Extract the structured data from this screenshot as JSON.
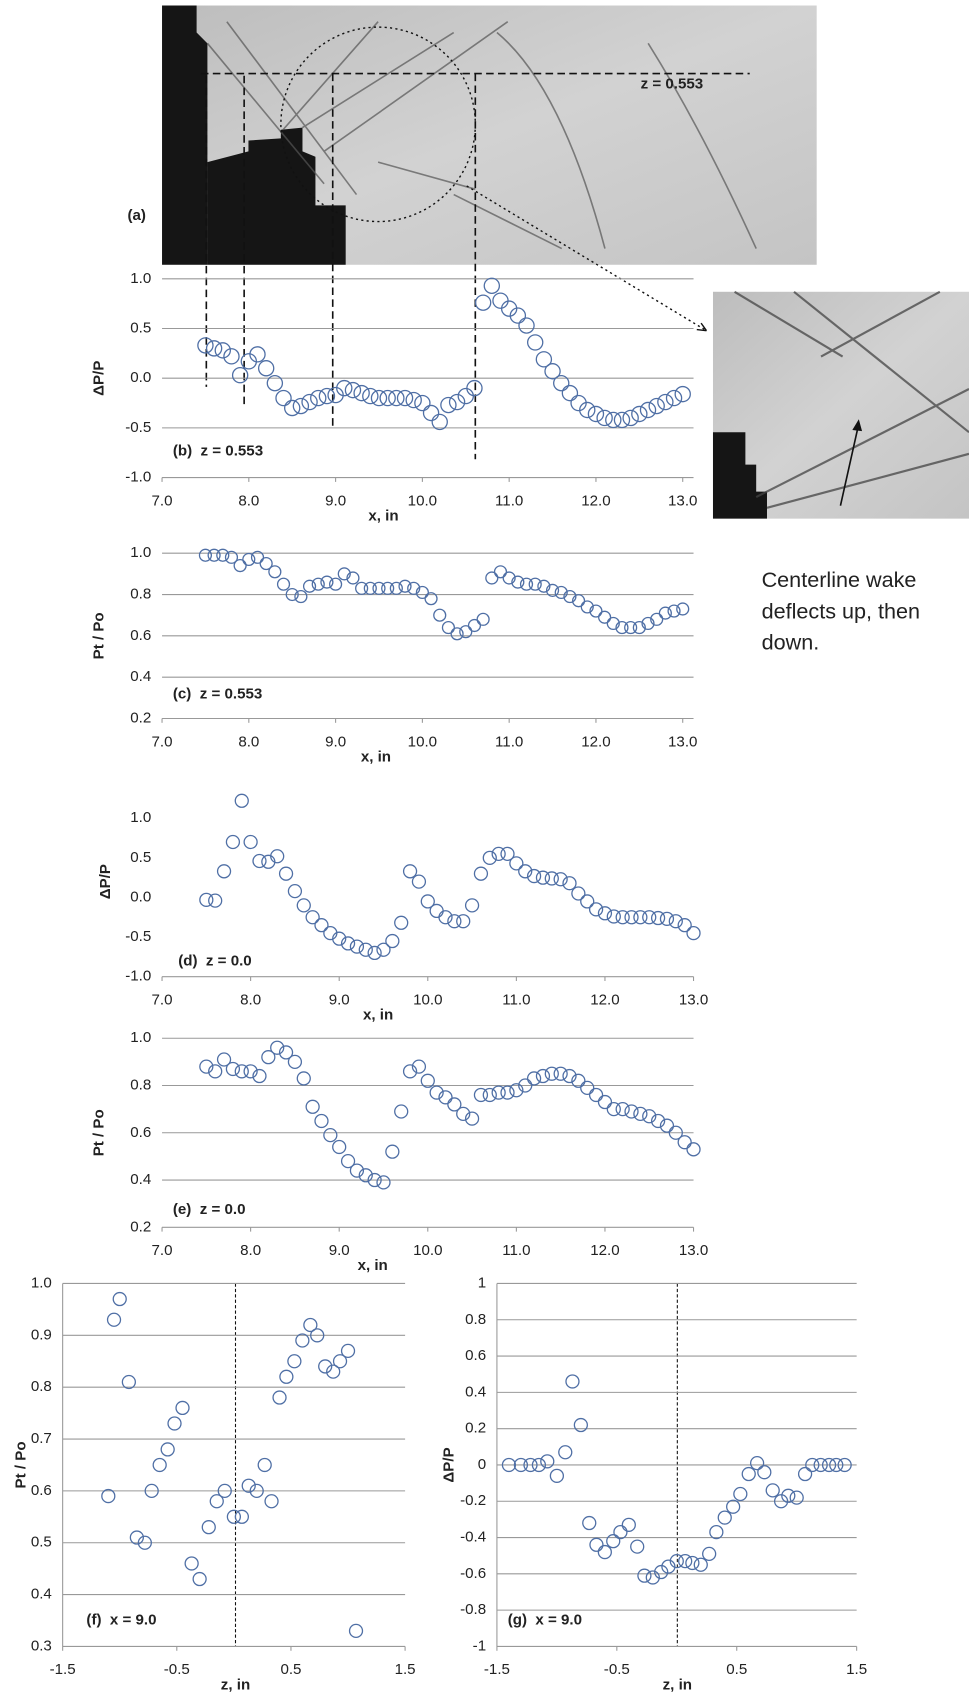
{
  "image_panel": {
    "label": "(a)",
    "annotation": "z = 0.553"
  },
  "callout": [
    "Centerline wake",
    "deflects up, then",
    "down."
  ],
  "chart_data": [
    {
      "type": "scatter",
      "panel_label": "(b)  z = 0.553",
      "x_label": "x, in",
      "y_label": "ΔP/P",
      "color": "#4f6fa5",
      "grid": true,
      "x": [
        7.5,
        7.6,
        7.7,
        7.8,
        7.9,
        8.0,
        8.1,
        8.2,
        8.3,
        8.4,
        8.5,
        8.6,
        8.7,
        8.8,
        8.9,
        9.0,
        9.1,
        9.2,
        9.3,
        9.4,
        9.5,
        9.6,
        9.7,
        9.8,
        9.9,
        10.0,
        10.1,
        10.2,
        10.3,
        10.4,
        10.5,
        10.6,
        10.7,
        10.8,
        10.9,
        11.0,
        11.1,
        11.2,
        11.3,
        11.4,
        11.5,
        11.6,
        11.7,
        11.8,
        11.9,
        12.0,
        12.1,
        12.2,
        12.3,
        12.4,
        12.5,
        12.6,
        12.7,
        12.8,
        12.9,
        13.0
      ],
      "values": [
        0.33,
        0.3,
        0.28,
        0.22,
        0.03,
        0.17,
        0.24,
        0.1,
        -0.05,
        -0.2,
        -0.3,
        -0.28,
        -0.24,
        -0.2,
        -0.18,
        -0.17,
        -0.1,
        -0.12,
        -0.15,
        -0.18,
        -0.2,
        -0.2,
        -0.2,
        -0.2,
        -0.22,
        -0.25,
        -0.35,
        -0.44,
        -0.27,
        -0.24,
        -0.18,
        -0.1,
        0.76,
        0.93,
        0.78,
        0.7,
        0.63,
        0.53,
        0.36,
        0.19,
        0.07,
        -0.05,
        -0.15,
        -0.25,
        -0.32,
        -0.36,
        -0.4,
        -0.42,
        -0.42,
        -0.4,
        -0.36,
        -0.32,
        -0.28,
        -0.24,
        -0.2,
        -0.16
      ],
      "xlim": [
        7.0,
        13.0
      ],
      "ylim": [
        -1.0,
        1.0
      ],
      "xticks": [
        {
          "value": 7,
          "label": "7.0"
        },
        {
          "value": 8,
          "label": "8.0"
        },
        {
          "value": 9,
          "label": "9.0"
        },
        {
          "value": 10,
          "label": "10.0"
        },
        {
          "value": 11,
          "label": "11.0"
        },
        {
          "value": 12,
          "label": "12.0"
        },
        {
          "value": 13,
          "label": "13.0"
        }
      ],
      "yticks": [
        {
          "value": -1,
          "label": "-1.0"
        },
        {
          "value": -0.5,
          "label": "-0.5"
        },
        {
          "value": 0,
          "label": "0.0"
        },
        0.5,
        {
          "value": 1,
          "label": "1.0"
        }
      ]
    },
    {
      "type": "scatter",
      "panel_label": "(c)  z = 0.553",
      "x_label": "x, in",
      "y_label": "Pt / Po",
      "color": "#4f6fa5",
      "grid": true,
      "x": [
        7.5,
        7.6,
        7.7,
        7.8,
        7.9,
        8.0,
        8.1,
        8.2,
        8.3,
        8.4,
        8.5,
        8.6,
        8.7,
        8.8,
        8.9,
        9.0,
        9.1,
        9.2,
        9.3,
        9.4,
        9.5,
        9.6,
        9.7,
        9.8,
        9.9,
        10.0,
        10.1,
        10.2,
        10.3,
        10.4,
        10.5,
        10.6,
        10.7,
        10.8,
        10.9,
        11.0,
        11.1,
        11.2,
        11.3,
        11.4,
        11.5,
        11.6,
        11.7,
        11.8,
        11.9,
        12.0,
        12.1,
        12.2,
        12.3,
        12.4,
        12.5,
        12.6,
        12.7,
        12.8,
        12.9,
        13.0
      ],
      "values": [
        0.99,
        0.99,
        0.99,
        0.98,
        0.94,
        0.97,
        0.98,
        0.95,
        0.91,
        0.85,
        0.8,
        0.79,
        0.84,
        0.85,
        0.86,
        0.85,
        0.9,
        0.88,
        0.83,
        0.83,
        0.83,
        0.83,
        0.83,
        0.84,
        0.83,
        0.81,
        0.78,
        0.7,
        0.64,
        0.61,
        0.62,
        0.65,
        0.68,
        0.88,
        0.91,
        0.88,
        0.86,
        0.85,
        0.85,
        0.84,
        0.82,
        0.81,
        0.79,
        0.77,
        0.74,
        0.72,
        0.69,
        0.66,
        0.64,
        0.64,
        0.64,
        0.66,
        0.68,
        0.71,
        0.72,
        0.73
      ],
      "xlim": [
        7.0,
        13.0
      ],
      "ylim": [
        0.2,
        1.0
      ],
      "xticks": [
        {
          "value": 7,
          "label": "7.0"
        },
        {
          "value": 8,
          "label": "8.0"
        },
        {
          "value": 9,
          "label": "9.0"
        },
        {
          "value": 10,
          "label": "10.0"
        },
        {
          "value": 11,
          "label": "11.0"
        },
        {
          "value": 12,
          "label": "12.0"
        },
        {
          "value": 13,
          "label": "13.0"
        }
      ],
      "yticks": [
        0.2,
        0.4,
        0.6,
        0.8,
        {
          "value": 1,
          "label": "1.0"
        }
      ]
    },
    {
      "type": "scatter",
      "panel_label": "(d)  z = 0.0",
      "x_label": "x, in",
      "y_label": "ΔP/P",
      "color": "#4f6fa5",
      "grid": false,
      "x": [
        7.5,
        7.6,
        7.7,
        7.8,
        7.9,
        8.0,
        8.1,
        8.2,
        8.3,
        8.4,
        8.5,
        8.6,
        8.7,
        8.8,
        8.9,
        9.0,
        9.1,
        9.2,
        9.3,
        9.4,
        9.5,
        9.6,
        9.7,
        9.8,
        9.9,
        10.0,
        10.1,
        10.2,
        10.3,
        10.4,
        10.5,
        10.6,
        10.7,
        10.8,
        10.9,
        11.0,
        11.1,
        11.2,
        11.3,
        11.4,
        11.5,
        11.6,
        11.7,
        11.8,
        11.9,
        12.0,
        12.1,
        12.2,
        12.3,
        12.4,
        12.5,
        12.6,
        12.7,
        12.8,
        12.9,
        13.0
      ],
      "values": [
        -0.03,
        -0.04,
        0.33,
        0.7,
        1.22,
        0.7,
        0.46,
        0.45,
        0.52,
        0.3,
        0.08,
        -0.1,
        -0.25,
        -0.35,
        -0.45,
        -0.52,
        -0.58,
        -0.62,
        -0.66,
        -0.7,
        -0.66,
        -0.55,
        -0.32,
        0.33,
        0.2,
        -0.05,
        -0.17,
        -0.25,
        -0.3,
        -0.3,
        -0.1,
        0.3,
        0.5,
        0.55,
        0.55,
        0.43,
        0.33,
        0.27,
        0.25,
        0.24,
        0.23,
        0.18,
        0.05,
        -0.05,
        -0.15,
        -0.2,
        -0.24,
        -0.25,
        -0.25,
        -0.25,
        -0.25,
        -0.26,
        -0.27,
        -0.3,
        -0.35,
        -0.45
      ],
      "xlim": [
        7.0,
        13.0
      ],
      "ylim": [
        -1.0,
        1.4
      ],
      "xticks": [
        {
          "value": 7,
          "label": "7.0"
        },
        {
          "value": 8,
          "label": "8.0"
        },
        {
          "value": 9,
          "label": "9.0"
        },
        {
          "value": 10,
          "label": "10.0"
        },
        {
          "value": 11,
          "label": "11.0"
        },
        {
          "value": 12,
          "label": "12.0"
        },
        {
          "value": 13,
          "label": "13.0"
        }
      ],
      "yticks": [
        {
          "value": -1,
          "label": "-1.0"
        },
        {
          "value": -0.5,
          "label": "-0.5"
        },
        {
          "value": 0,
          "label": "0.0"
        },
        0.5,
        {
          "value": 1,
          "label": "1.0"
        }
      ]
    },
    {
      "type": "scatter",
      "panel_label": "(e)  z = 0.0",
      "x_label": "x, in",
      "y_label": "Pt / Po",
      "color": "#4f6fa5",
      "grid": true,
      "x": [
        7.5,
        7.6,
        7.7,
        7.8,
        7.9,
        8.0,
        8.1,
        8.2,
        8.3,
        8.4,
        8.5,
        8.6,
        8.7,
        8.8,
        8.9,
        9.0,
        9.1,
        9.2,
        9.3,
        9.4,
        9.5,
        9.6,
        9.7,
        9.8,
        9.9,
        10.0,
        10.1,
        10.2,
        10.3,
        10.4,
        10.5,
        10.6,
        10.7,
        10.8,
        10.9,
        11.0,
        11.1,
        11.2,
        11.3,
        11.4,
        11.5,
        11.6,
        11.7,
        11.8,
        11.9,
        12.0,
        12.1,
        12.2,
        12.3,
        12.4,
        12.5,
        12.6,
        12.7,
        12.8,
        12.9,
        13.0
      ],
      "values": [
        0.88,
        0.86,
        0.91,
        0.87,
        0.86,
        0.86,
        0.84,
        0.92,
        0.96,
        0.94,
        0.9,
        0.83,
        0.71,
        0.65,
        0.59,
        0.54,
        0.48,
        0.44,
        0.42,
        0.4,
        0.39,
        0.52,
        0.69,
        0.86,
        0.88,
        0.82,
        0.77,
        0.75,
        0.72,
        0.68,
        0.66,
        0.76,
        0.76,
        0.77,
        0.77,
        0.78,
        0.8,
        0.83,
        0.84,
        0.85,
        0.85,
        0.84,
        0.82,
        0.79,
        0.76,
        0.73,
        0.7,
        0.7,
        0.69,
        0.68,
        0.67,
        0.65,
        0.63,
        0.6,
        0.56,
        0.53
      ],
      "xlim": [
        7.0,
        13.0
      ],
      "ylim": [
        0.2,
        1.0
      ],
      "xticks": [
        {
          "value": 7,
          "label": "7.0"
        },
        {
          "value": 8,
          "label": "8.0"
        },
        {
          "value": 9,
          "label": "9.0"
        },
        {
          "value": 10,
          "label": "10.0"
        },
        {
          "value": 11,
          "label": "11.0"
        },
        {
          "value": 12,
          "label": "12.0"
        },
        {
          "value": 13,
          "label": "13.0"
        }
      ],
      "yticks": [
        0.2,
        0.4,
        0.6,
        0.8,
        {
          "value": 1,
          "label": "1.0"
        }
      ]
    },
    {
      "type": "scatter",
      "panel_label": "(f)  x = 9.0",
      "x_label": "z, in",
      "y_label": "Pt / Po",
      "color": "#4f6fa5",
      "grid": true,
      "x": [
        -1.1,
        -1.05,
        -1.0,
        -0.92,
        -0.85,
        -0.78,
        -0.72,
        -0.65,
        -0.58,
        -0.52,
        -0.45,
        -0.37,
        -0.3,
        -0.22,
        -0.15,
        -0.08,
        0.0,
        0.07,
        0.13,
        0.2,
        0.27,
        0.33,
        0.4,
        0.46,
        0.53,
        0.6,
        0.67,
        0.73,
        0.8,
        0.87,
        0.93,
        1.0,
        1.07
      ],
      "values": [
        0.59,
        0.93,
        0.97,
        0.81,
        0.51,
        0.5,
        0.6,
        0.65,
        0.68,
        0.73,
        0.76,
        0.46,
        0.43,
        0.53,
        0.58,
        0.6,
        0.55,
        0.55,
        0.61,
        0.6,
        0.65,
        0.58,
        0.78,
        0.82,
        0.85,
        0.89,
        0.92,
        0.9,
        0.84,
        0.83,
        0.85,
        0.87,
        0.33
      ],
      "xlim": [
        -1.5,
        1.5
      ],
      "ylim": [
        0.3,
        1.0
      ],
      "xticks": [
        -1.5,
        -0.5,
        0.5,
        1.5
      ],
      "yticks": [
        0.3,
        0.4,
        0.5,
        0.6,
        0.7,
        0.8,
        0.9,
        {
          "value": 1,
          "label": "1.0"
        }
      ]
    },
    {
      "type": "scatter",
      "panel_label": "(g)  x = 9.0",
      "x_label": "z, in",
      "y_label": "ΔP/P",
      "color": "#4f6fa5",
      "grid": true,
      "x": [
        -1.4,
        -1.3,
        -1.22,
        -1.15,
        -1.08,
        -1.0,
        -0.93,
        -0.87,
        -0.8,
        -0.73,
        -0.67,
        -0.6,
        -0.53,
        -0.47,
        -0.4,
        -0.33,
        -0.27,
        -0.2,
        -0.13,
        -0.07,
        0.0,
        0.07,
        0.13,
        0.2,
        0.27,
        0.33,
        0.4,
        0.47,
        0.53,
        0.6,
        0.67,
        0.73,
        0.8,
        0.87,
        0.93,
        1.0,
        1.07,
        1.13,
        1.2,
        1.27,
        1.33,
        1.4
      ],
      "values": [
        0,
        0,
        0,
        0,
        0.02,
        -0.06,
        0.07,
        0.46,
        0.22,
        -0.32,
        -0.44,
        -0.48,
        -0.42,
        -0.37,
        -0.33,
        -0.45,
        -0.61,
        -0.62,
        -0.59,
        -0.56,
        -0.53,
        -0.53,
        -0.54,
        -0.55,
        -0.49,
        -0.37,
        -0.29,
        -0.23,
        -0.16,
        -0.05,
        0.01,
        -0.04,
        -0.14,
        -0.2,
        -0.17,
        -0.18,
        -0.05,
        0,
        0,
        0,
        0,
        0
      ],
      "xlim": [
        -1.5,
        1.5
      ],
      "ylim": [
        -1,
        1
      ],
      "xticks": [
        -1.5,
        -0.5,
        0.5,
        1.5
      ],
      "yticks": [
        -1,
        -0.8,
        -0.6,
        -0.4,
        -0.2,
        0,
        0.2,
        0.4,
        0.6,
        0.8,
        1
      ]
    }
  ]
}
